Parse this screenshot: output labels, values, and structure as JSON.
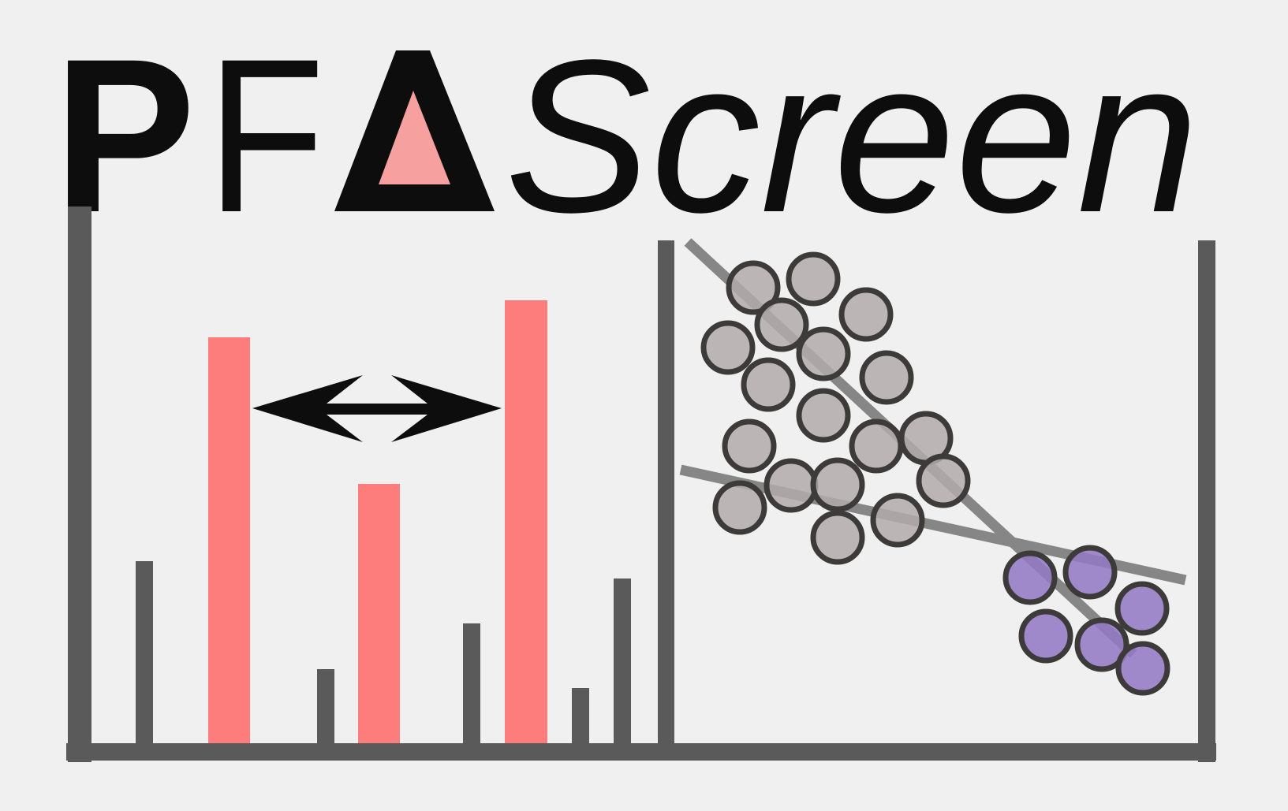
{
  "logo": {
    "letters_plain": "PF",
    "letter_symbol": "Δ",
    "letters_italic": "Screen"
  },
  "colors": {
    "background": "#f0f0f0",
    "ink": "#0d0d0d",
    "axis": "#5a5a5a",
    "peak_bar": "#fd7c7c",
    "triangle_fill": "#f7a0a0",
    "fit_line": "#868686",
    "point_fill": "#b1acaa",
    "point_fill_highlight": "#937ac4",
    "point_stroke": "#3d3a3a"
  },
  "icons": {
    "delta": "delta-triangle-icon",
    "double_arrow": "double-headed-arrow-icon"
  }
}
